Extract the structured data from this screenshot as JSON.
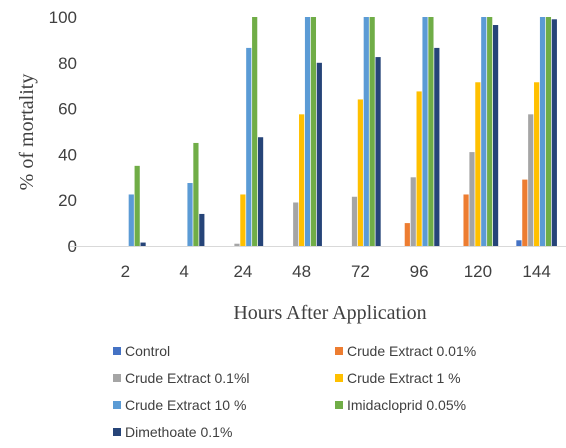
{
  "chart_data": {
    "type": "bar",
    "xlabel": "Hours After Application",
    "ylabel": "% of mortality",
    "categories": [
      "2",
      "4",
      "24",
      "48",
      "72",
      "96",
      "120",
      "144"
    ],
    "ylim": [
      0,
      100
    ],
    "yticks": [
      0,
      20,
      40,
      60,
      80,
      100
    ],
    "grid": false,
    "legend_position": "bottom",
    "series": [
      {
        "name": "Control",
        "color": "#4472C4",
        "values": [
          0,
          0,
          0,
          0,
          0,
          0,
          0,
          2.5
        ]
      },
      {
        "name": "Crude Extract 0.01%",
        "color": "#ED7D31",
        "values": [
          0,
          0,
          0,
          0,
          0,
          10,
          22.5,
          29
        ]
      },
      {
        "name": "Crude Extract 0.1%l",
        "color": "#A5A5A5",
        "values": [
          0,
          0,
          1,
          19,
          21.5,
          30,
          41,
          57.5
        ]
      },
      {
        "name": "Crude Extract 1 %",
        "color": "#FFC000",
        "values": [
          0,
          0,
          22.5,
          57.5,
          64,
          67.5,
          71.5,
          71.5
        ]
      },
      {
        "name": "Crude Extract 10 %",
        "color": "#5B9BD5",
        "values": [
          22.5,
          27.5,
          86.5,
          100,
          100,
          100,
          100,
          100
        ]
      },
      {
        "name": "Imidacloprid 0.05%",
        "color": "#70AD47",
        "values": [
          35,
          45,
          100,
          100,
          100,
          100,
          100,
          100
        ]
      },
      {
        "name": "Dimethoate 0.1%",
        "color": "#264478",
        "values": [
          1.5,
          14,
          47.5,
          80,
          82.5,
          86.5,
          96.5,
          99
        ]
      }
    ]
  }
}
